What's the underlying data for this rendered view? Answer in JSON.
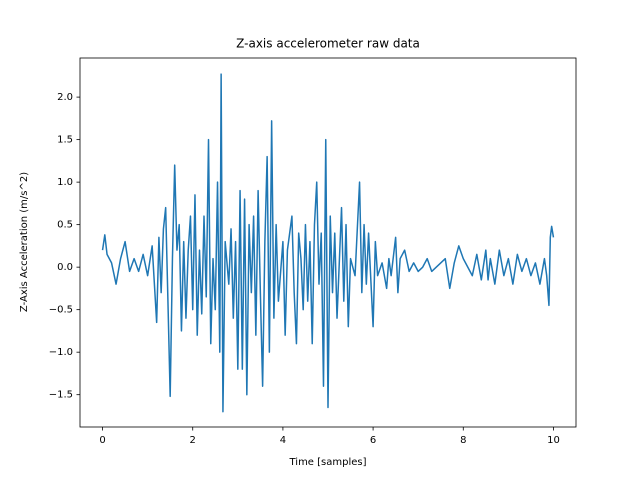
{
  "chart_data": {
    "type": "line",
    "title": "Z-axis accelerometer raw data",
    "x_label": "Time [samples]",
    "y_label": "Z-Axis Acceleration (m/s^2)",
    "xlim": [
      -0.5,
      10.5
    ],
    "ylim": [
      -1.88,
      2.46
    ],
    "xticks": [
      0,
      2,
      4,
      6,
      8,
      10
    ],
    "yticks": [
      {
        "value": -1.5,
        "label": "−1.5"
      },
      {
        "value": -1.0,
        "label": "−1.0"
      },
      {
        "value": -0.5,
        "label": "−0.5"
      },
      {
        "value": 0,
        "label": "0.0"
      },
      {
        "value": 0.5,
        "label": "0.5"
      },
      {
        "value": 1.0,
        "label": "1.0"
      },
      {
        "value": 1.5,
        "label": "1.5"
      },
      {
        "value": 2.0,
        "label": "2.0"
      }
    ],
    "grid": false,
    "series": [
      {
        "color": "#1f77b4",
        "x": [
          0,
          0.05,
          0.1,
          0.2,
          0.3,
          0.4,
          0.5,
          0.6,
          0.7,
          0.8,
          0.9,
          1.0,
          1.1,
          1.2,
          1.25,
          1.3,
          1.35,
          1.4,
          1.45,
          1.5,
          1.55,
          1.6,
          1.65,
          1.7,
          1.75,
          1.8,
          1.85,
          1.9,
          1.95,
          2.0,
          2.05,
          2.1,
          2.15,
          2.2,
          2.25,
          2.3,
          2.35,
          2.4,
          2.45,
          2.5,
          2.55,
          2.6,
          2.63,
          2.67,
          2.72,
          2.8,
          2.85,
          2.9,
          2.95,
          3.0,
          3.05,
          3.1,
          3.15,
          3.2,
          3.25,
          3.3,
          3.35,
          3.4,
          3.45,
          3.5,
          3.55,
          3.6,
          3.65,
          3.7,
          3.75,
          3.8,
          3.85,
          3.9,
          4.0,
          4.05,
          4.1,
          4.2,
          4.25,
          4.3,
          4.35,
          4.4,
          4.45,
          4.5,
          4.55,
          4.6,
          4.65,
          4.7,
          4.75,
          4.8,
          4.85,
          4.9,
          4.95,
          5.0,
          5.05,
          5.1,
          5.15,
          5.2,
          5.3,
          5.35,
          5.4,
          5.45,
          5.5,
          5.6,
          5.7,
          5.75,
          5.8,
          5.85,
          5.9,
          6.0,
          6.05,
          6.1,
          6.2,
          6.3,
          6.35,
          6.4,
          6.5,
          6.55,
          6.6,
          6.7,
          6.8,
          6.9,
          7.0,
          7.1,
          7.2,
          7.3,
          7.4,
          7.5,
          7.6,
          7.7,
          7.8,
          7.9,
          8.0,
          8.1,
          8.2,
          8.3,
          8.4,
          8.5,
          8.55,
          8.6,
          8.7,
          8.8,
          8.9,
          9.0,
          9.1,
          9.2,
          9.3,
          9.4,
          9.5,
          9.6,
          9.7,
          9.8,
          9.85,
          9.9,
          9.93,
          9.96,
          10.0
        ],
        "values": [
          0.2,
          0.38,
          0.15,
          0.05,
          -0.2,
          0.1,
          0.3,
          -0.05,
          0.1,
          -0.05,
          0.15,
          -0.1,
          0.25,
          -0.65,
          0.35,
          -0.3,
          0.45,
          0.7,
          -0.4,
          -1.52,
          0.1,
          1.2,
          0.2,
          0.5,
          -0.75,
          0.3,
          -0.6,
          0.2,
          0.6,
          -0.5,
          0.85,
          -0.8,
          0.2,
          -0.55,
          0.6,
          -0.35,
          1.5,
          -0.9,
          0.1,
          -0.5,
          1.0,
          -1.0,
          2.27,
          -1.7,
          0.3,
          -0.2,
          0.45,
          -0.6,
          0.3,
          -1.2,
          0.9,
          -1.2,
          0.8,
          -1.5,
          0.5,
          -0.3,
          0.6,
          -0.8,
          0.9,
          -0.3,
          -1.4,
          0.3,
          1.3,
          -1.0,
          1.72,
          -0.6,
          0.5,
          -0.4,
          0.3,
          -0.8,
          0.2,
          0.6,
          -0.3,
          -0.9,
          0.4,
          0.1,
          -0.5,
          0.5,
          -0.4,
          0.3,
          -0.9,
          0.5,
          1.0,
          -0.2,
          0.4,
          -1.4,
          1.5,
          -1.65,
          0.6,
          -0.3,
          0.4,
          -0.6,
          0.7,
          -0.4,
          0.5,
          -0.7,
          0.1,
          -0.1,
          1.0,
          -0.3,
          0.5,
          -0.2,
          0.4,
          -0.7,
          0.3,
          -0.1,
          0.05,
          -0.25,
          0.1,
          -0.1,
          0.35,
          -0.3,
          0.1,
          0.2,
          -0.05,
          0.05,
          -0.05,
          0.0,
          0.1,
          -0.05,
          0.0,
          0.05,
          0.1,
          -0.25,
          0.05,
          0.25,
          0.1,
          0.0,
          -0.1,
          0.15,
          -0.15,
          0.2,
          -0.15,
          0.1,
          -0.2,
          0.2,
          -0.1,
          0.1,
          -0.2,
          0.15,
          -0.05,
          0.1,
          -0.1,
          0.05,
          -0.2,
          0.1,
          -0.1,
          -0.45,
          0.35,
          0.48,
          0.35
        ]
      }
    ]
  }
}
